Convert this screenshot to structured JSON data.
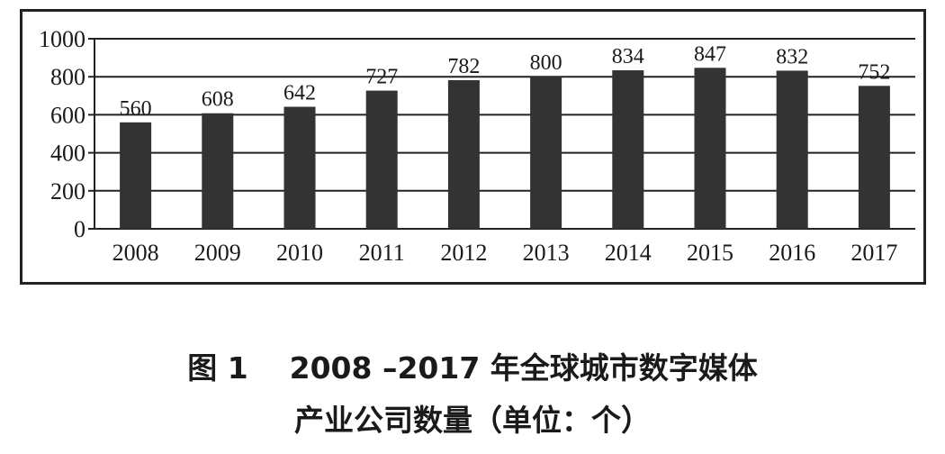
{
  "chart_data": {
    "type": "bar",
    "title": "",
    "xlabel": "",
    "ylabel": "",
    "categories": [
      "2008",
      "2009",
      "2010",
      "2011",
      "2012",
      "2013",
      "2014",
      "2015",
      "2016",
      "2017"
    ],
    "values": [
      560,
      608,
      642,
      727,
      782,
      800,
      834,
      847,
      832,
      752
    ],
    "data_labels": [
      "560",
      "608",
      "642",
      "727",
      "782",
      "800",
      "834",
      "847",
      "832",
      "752"
    ],
    "ylim": [
      0,
      1000
    ],
    "yticks": [
      0,
      200,
      400,
      600,
      800,
      1000
    ],
    "ytick_labels": [
      "0",
      "200",
      "400",
      "600",
      "800",
      "1000"
    ],
    "grid": "horizontal",
    "legend": "none",
    "bar_color": "#333333"
  },
  "caption": {
    "line1": "图 1    2008 –2017 年全球城市数字媒体",
    "line2": "产业公司数量（单位：个）"
  }
}
